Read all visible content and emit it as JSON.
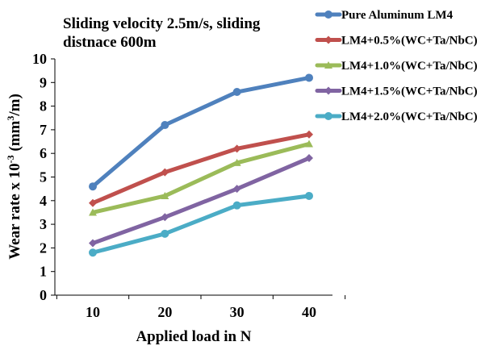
{
  "chart_data": {
    "type": "line",
    "title_lines": [
      "Sliding velocity 2.5m/s, sliding",
      "distnace 600m"
    ],
    "xlabel": "Applied load in N",
    "ylabel": {
      "prefix": "Wear rate x 10",
      "exp1": "-3",
      "mid": " (mm",
      "exp2": "3",
      "suffix": "/m)"
    },
    "x": [
      10,
      20,
      30,
      40
    ],
    "xticks": [
      "10",
      "20",
      "30",
      "40"
    ],
    "ylim": [
      0,
      10
    ],
    "yticks": [
      "0",
      "1",
      "2",
      "3",
      "4",
      "5",
      "6",
      "7",
      "8",
      "9",
      "10"
    ],
    "legend_position": "top-right",
    "series": [
      {
        "name": "Pure Aluminum LM4",
        "color": "#4f81bd",
        "values": [
          4.6,
          7.2,
          8.6,
          9.2
        ]
      },
      {
        "name": "LM4+0.5%(WC+Ta/NbC)",
        "color": "#c0504d",
        "values": [
          3.9,
          5.2,
          6.2,
          6.8
        ]
      },
      {
        "name": "LM4+1.0%(WC+Ta/NbC)",
        "color": "#9bbb59",
        "values": [
          3.5,
          4.2,
          5.6,
          6.4
        ]
      },
      {
        "name": "LM4+1.5%(WC+Ta/NbC)",
        "color": "#8064a2",
        "values": [
          2.2,
          3.3,
          4.5,
          5.8
        ]
      },
      {
        "name": "LM4+2.0%(WC+Ta/NbC)",
        "color": "#4bacc6",
        "values": [
          1.8,
          2.6,
          3.8,
          4.2
        ]
      }
    ]
  }
}
